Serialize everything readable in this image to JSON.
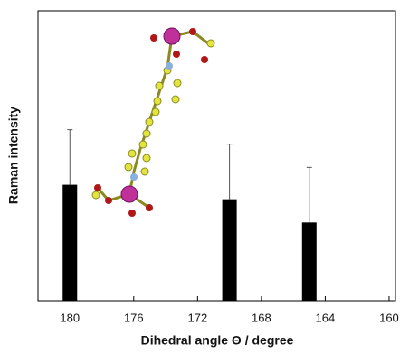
{
  "chart_data": {
    "type": "bar",
    "x_label": "Dihedral angle Θ / degree",
    "y_label": "Raman intensity",
    "x": [
      180,
      170,
      165
    ],
    "values": [
      4.0,
      3.5,
      2.7
    ],
    "errors": [
      1.9,
      1.9,
      1.9
    ],
    "color": "#000000",
    "xlim": [
      182,
      159.6
    ],
    "xticks": [
      180,
      176,
      172,
      168,
      164,
      160
    ],
    "ylim": [
      0,
      10
    ]
  }
}
